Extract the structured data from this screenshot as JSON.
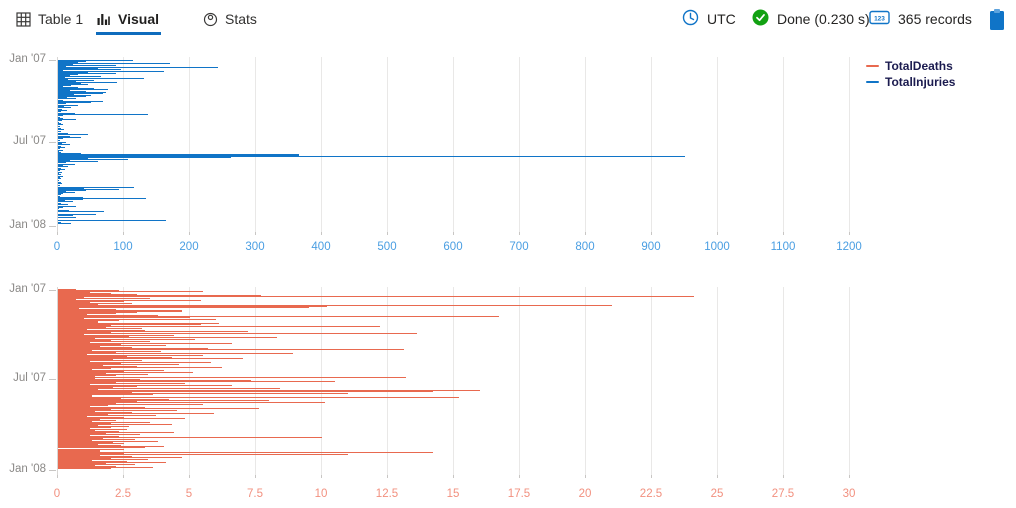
{
  "toolbar": {
    "tabs": [
      {
        "label": "Table 1",
        "icon": "table-grid-icon",
        "active": false
      },
      {
        "label": "Visual",
        "icon": "bar-chart-icon",
        "active": true
      },
      {
        "label": "Stats",
        "icon": "donut-icon",
        "active": false
      }
    ],
    "status": {
      "timezone": "UTC",
      "timezone_icon": "clock-icon",
      "done": "Done (0.230 s)",
      "done_icon": "check-circle-icon",
      "records": "365 records",
      "records_icon": "number-badge-icon",
      "clipboard_icon": "clipboard-icon"
    }
  },
  "legend": {
    "items": [
      {
        "label": "TotalDeaths",
        "color": "#e8694f"
      },
      {
        "label": "TotalInjuries",
        "color": "#1074c7"
      }
    ]
  },
  "colors": {
    "accent_blue": "#0f6cbd",
    "status_green": "#12a112",
    "bar_blue": "#1074c7",
    "bar_red": "#e8694f",
    "tick_blue": "#4a9ee2",
    "tick_red": "#f2907f",
    "grid": "#e9e8e7",
    "y_label_gray": "#8a8886"
  },
  "chart_data": [
    {
      "type": "bar",
      "orientation": "horizontal",
      "series": "TotalInjuries",
      "color": "#1074c7",
      "xlim": [
        0,
        1200
      ],
      "x_ticks": [
        0,
        100,
        200,
        300,
        400,
        500,
        600,
        700,
        800,
        900,
        1000,
        1100,
        1200
      ],
      "y_axis": "date (daily, 2007)",
      "grid": true,
      "legend_position": "top-right",
      "y_tick_labels": [
        {
          "label": "Jan '07",
          "day": 0
        },
        {
          "label": "Jul '07",
          "day": 181
        },
        {
          "label": "Jan '08",
          "day": 365
        }
      ],
      "bars": [
        [
          0,
          25
        ],
        [
          1,
          113
        ],
        [
          3,
          42
        ],
        [
          4,
          30
        ],
        [
          5,
          8
        ],
        [
          6,
          170
        ],
        [
          8,
          22
        ],
        [
          9,
          6
        ],
        [
          11,
          88
        ],
        [
          12,
          45
        ],
        [
          14,
          12
        ],
        [
          15,
          242
        ],
        [
          17,
          60
        ],
        [
          18,
          14
        ],
        [
          20,
          95
        ],
        [
          21,
          28
        ],
        [
          23,
          7
        ],
        [
          24,
          160
        ],
        [
          26,
          45
        ],
        [
          27,
          12
        ],
        [
          29,
          88
        ],
        [
          31,
          30
        ],
        [
          33,
          18
        ],
        [
          35,
          65
        ],
        [
          36,
          25
        ],
        [
          38,
          10
        ],
        [
          39,
          130
        ],
        [
          41,
          40
        ],
        [
          43,
          15
        ],
        [
          45,
          55
        ],
        [
          47,
          28
        ],
        [
          48,
          90
        ],
        [
          50,
          35
        ],
        [
          52,
          12
        ],
        [
          54,
          45
        ],
        [
          56,
          20
        ],
        [
          58,
          8
        ],
        [
          60,
          30
        ],
        [
          62,
          55
        ],
        [
          63,
          12
        ],
        [
          65,
          75
        ],
        [
          67,
          18
        ],
        [
          69,
          42
        ],
        [
          71,
          73
        ],
        [
          73,
          68
        ],
        [
          75,
          24
        ],
        [
          77,
          50
        ],
        [
          80,
          42
        ],
        [
          82,
          14
        ],
        [
          85,
          28
        ],
        [
          88,
          8
        ],
        [
          90,
          68
        ],
        [
          92,
          24
        ],
        [
          94,
          50
        ],
        [
          96,
          12
        ],
        [
          99,
          30
        ],
        [
          102,
          9
        ],
        [
          105,
          20
        ],
        [
          108,
          6
        ],
        [
          111,
          14
        ],
        [
          114,
          5
        ],
        [
          117,
          25
        ],
        [
          120,
          136
        ],
        [
          123,
          8
        ],
        [
          126,
          3
        ],
        [
          128,
          8
        ],
        [
          131,
          28
        ],
        [
          134,
          6
        ],
        [
          137,
          2
        ],
        [
          140,
          4
        ],
        [
          143,
          7
        ],
        [
          146,
          3
        ],
        [
          150,
          5
        ],
        [
          154,
          9
        ],
        [
          158,
          4
        ],
        [
          162,
          15
        ],
        [
          165,
          45
        ],
        [
          168,
          18
        ],
        [
          171,
          35
        ],
        [
          174,
          8
        ],
        [
          178,
          3
        ],
        [
          181,
          12
        ],
        [
          184,
          6
        ],
        [
          187,
          18
        ],
        [
          190,
          4
        ],
        [
          193,
          10
        ],
        [
          196,
          3
        ],
        [
          199,
          8
        ],
        [
          202,
          2
        ],
        [
          205,
          5
        ],
        [
          207,
          35
        ],
        [
          209,
          60
        ],
        [
          210,
          365,
          2
        ],
        [
          212,
          950
        ],
        [
          214,
          80
        ],
        [
          216,
          262
        ],
        [
          217,
          45
        ],
        [
          219,
          106
        ],
        [
          221,
          18
        ],
        [
          223,
          8
        ],
        [
          225,
          61
        ],
        [
          227,
          12
        ],
        [
          230,
          25
        ],
        [
          233,
          8
        ],
        [
          236,
          15
        ],
        [
          239,
          5
        ],
        [
          242,
          10
        ],
        [
          245,
          3
        ],
        [
          248,
          6
        ],
        [
          251,
          2
        ],
        [
          254,
          4
        ],
        [
          257,
          7
        ],
        [
          260,
          3
        ],
        [
          263,
          5
        ],
        [
          266,
          2
        ],
        [
          270,
          4
        ],
        [
          274,
          6
        ],
        [
          278,
          3
        ],
        [
          281,
          115
        ],
        [
          283,
          40
        ],
        [
          285,
          20
        ],
        [
          287,
          92
        ],
        [
          289,
          42
        ],
        [
          291,
          12
        ],
        [
          293,
          25
        ],
        [
          295,
          8
        ],
        [
          298,
          5
        ],
        [
          301,
          3
        ],
        [
          304,
          38
        ],
        [
          306,
          133
        ],
        [
          308,
          38
        ],
        [
          311,
          10
        ],
        [
          314,
          22
        ],
        [
          317,
          5
        ],
        [
          320,
          15
        ],
        [
          323,
          28
        ],
        [
          326,
          8
        ],
        [
          329,
          2
        ],
        [
          332,
          6
        ],
        [
          334,
          17
        ],
        [
          336,
          70
        ],
        [
          341,
          58
        ],
        [
          345,
          23
        ],
        [
          349,
          27
        ],
        [
          356,
          164
        ],
        [
          359,
          5
        ],
        [
          362,
          20
        ]
      ]
    },
    {
      "type": "bar",
      "orientation": "horizontal",
      "series": "TotalDeaths",
      "color": "#e8694f",
      "xlim": [
        0,
        30
      ],
      "x_ticks": [
        0,
        2.5,
        5,
        7.5,
        10,
        12.5,
        15,
        17.5,
        20,
        22.5,
        25,
        27.5,
        30
      ],
      "y_axis": "date (daily, 2007)",
      "grid": true,
      "legend_position": "top-right",
      "y_tick_labels": [
        {
          "label": "Jan '07",
          "day": 0
        },
        {
          "label": "Jul '07",
          "day": 181
        },
        {
          "label": "Jan '08",
          "day": 365
        }
      ],
      "bars": [
        [
          0,
          0.7,
          3
        ],
        [
          1,
          2.3
        ],
        [
          2,
          5.5
        ],
        [
          4,
          1.2
        ],
        [
          6,
          2.0
        ],
        [
          8,
          0.8,
          4
        ],
        [
          9,
          3.0
        ],
        [
          10,
          7.7
        ],
        [
          12,
          24.1
        ],
        [
          13,
          2.0
        ],
        [
          15,
          1.0,
          3
        ],
        [
          17,
          3.5
        ],
        [
          18,
          0.7,
          3
        ],
        [
          20,
          5.4
        ],
        [
          22,
          2.5
        ],
        [
          24,
          1.2,
          2
        ],
        [
          26,
          2.8
        ],
        [
          28,
          1.5
        ],
        [
          30,
          21.0
        ],
        [
          31,
          16.7
        ],
        [
          33,
          10.2
        ],
        [
          35,
          9.5
        ],
        [
          36,
          0.8,
          3
        ],
        [
          38,
          2.2
        ],
        [
          40,
          4.0
        ],
        [
          42,
          4.7,
          2
        ],
        [
          44,
          1.5,
          3
        ],
        [
          46,
          3.0
        ],
        [
          48,
          2.2
        ],
        [
          50,
          1.1,
          2
        ],
        [
          52,
          3.8
        ],
        [
          54,
          16.7
        ],
        [
          56,
          5.0
        ],
        [
          58,
          1.0,
          3
        ],
        [
          60,
          6.0
        ],
        [
          62,
          2.3
        ],
        [
          64,
          1.4,
          2
        ],
        [
          66,
          1.5,
          4
        ],
        [
          68,
          6.1
        ],
        [
          70,
          5.4
        ],
        [
          72,
          2.0
        ],
        [
          74,
          12.2
        ],
        [
          76,
          1.8
        ],
        [
          78,
          3.2
        ],
        [
          80,
          1.1,
          4
        ],
        [
          82,
          3.3
        ],
        [
          84,
          7.2
        ],
        [
          86,
          2.0
        ],
        [
          88,
          13.6
        ],
        [
          90,
          1.0,
          3
        ],
        [
          92,
          4.4
        ],
        [
          94,
          2.7
        ],
        [
          96,
          8.3
        ],
        [
          98,
          1.4,
          3
        ],
        [
          100,
          5.2
        ],
        [
          102,
          2.0
        ],
        [
          104,
          3.5
        ],
        [
          106,
          1.2,
          3
        ],
        [
          108,
          6.6
        ],
        [
          110,
          2.4
        ],
        [
          112,
          4.1
        ],
        [
          114,
          1.6,
          3
        ],
        [
          116,
          2.8
        ],
        [
          118,
          5.7
        ],
        [
          120,
          13.1
        ],
        [
          122,
          1.3,
          4
        ],
        [
          124,
          3.9
        ],
        [
          126,
          2.2
        ],
        [
          128,
          8.9
        ],
        [
          130,
          1.1,
          3
        ],
        [
          132,
          5.5
        ],
        [
          134,
          2.6
        ],
        [
          136,
          4.3
        ],
        [
          138,
          1.5,
          4
        ],
        [
          140,
          7.0
        ],
        [
          142,
          2.1
        ],
        [
          144,
          3.2
        ],
        [
          146,
          1.2,
          3
        ],
        [
          148,
          5.8
        ],
        [
          150,
          2.4
        ],
        [
          152,
          4.6
        ],
        [
          154,
          1.7,
          3
        ],
        [
          156,
          3.0
        ],
        [
          158,
          6.2
        ],
        [
          160,
          2.0
        ],
        [
          162,
          1.3,
          3
        ],
        [
          164,
          4.0
        ],
        [
          166,
          2.5
        ],
        [
          168,
          5.1
        ],
        [
          170,
          1.8,
          3
        ],
        [
          172,
          3.4
        ],
        [
          174,
          2.2
        ],
        [
          176,
          1.4,
          2
        ],
        [
          178,
          13.2
        ],
        [
          180,
          1.4,
          4
        ],
        [
          182,
          3.1
        ],
        [
          184,
          7.3
        ],
        [
          186,
          10.5
        ],
        [
          188,
          2.2
        ],
        [
          190,
          4.8
        ],
        [
          192,
          1.2,
          4
        ],
        [
          194,
          6.6
        ],
        [
          196,
          3.0
        ],
        [
          198,
          2.1
        ],
        [
          200,
          8.4
        ],
        [
          202,
          1.5,
          3
        ],
        [
          205,
          16.0
        ],
        [
          207,
          14.2
        ],
        [
          209,
          2.8
        ],
        [
          211,
          11.0
        ],
        [
          213,
          3.6
        ],
        [
          215,
          1.3,
          3
        ],
        [
          218,
          15.2
        ],
        [
          220,
          2.4
        ],
        [
          222,
          4.2
        ],
        [
          224,
          8.0
        ],
        [
          226,
          1.6,
          3
        ],
        [
          228,
          3.0
        ],
        [
          230,
          10.1
        ],
        [
          232,
          2.2
        ],
        [
          234,
          5.5
        ],
        [
          236,
          1.9
        ],
        [
          238,
          1.2,
          4
        ],
        [
          240,
          3.3
        ],
        [
          242,
          7.6
        ],
        [
          244,
          2.0
        ],
        [
          246,
          4.5
        ],
        [
          248,
          1.4,
          3
        ],
        [
          250,
          2.8
        ],
        [
          252,
          5.9
        ],
        [
          254,
          1.9
        ],
        [
          256,
          3.7
        ],
        [
          258,
          1.1,
          3
        ],
        [
          260,
          2.5
        ],
        [
          262,
          4.8
        ],
        [
          264,
          1.6
        ],
        [
          266,
          2.2
        ],
        [
          268,
          1.3,
          3
        ],
        [
          270,
          3.5
        ],
        [
          272,
          2.0
        ],
        [
          274,
          4.3
        ],
        [
          276,
          1.5,
          3
        ],
        [
          278,
          2.7
        ],
        [
          280,
          2.0
        ],
        [
          282,
          1.2,
          2
        ],
        [
          284,
          2.6
        ],
        [
          286,
          1.4,
          3
        ],
        [
          288,
          2.3
        ],
        [
          290,
          4.4
        ],
        [
          292,
          1.8
        ],
        [
          294,
          3.1
        ],
        [
          296,
          1.2,
          3
        ],
        [
          298,
          2.3
        ],
        [
          300,
          10.0
        ],
        [
          302,
          1.7
        ],
        [
          304,
          2.9
        ],
        [
          306,
          1.3,
          3
        ],
        [
          308,
          3.8
        ],
        [
          310,
          2.1
        ],
        [
          312,
          2.5
        ],
        [
          314,
          1.5,
          4
        ],
        [
          316,
          2.4
        ],
        [
          318,
          4.0
        ],
        [
          320,
          1.9
        ],
        [
          322,
          3.3
        ],
        [
          326,
          2.5
        ],
        [
          328,
          1.6,
          2
        ],
        [
          331,
          14.2
        ],
        [
          333,
          2.5
        ],
        [
          335,
          11.0
        ],
        [
          337,
          1.6,
          4
        ],
        [
          339,
          2.8
        ],
        [
          341,
          4.7
        ],
        [
          343,
          2.0
        ],
        [
          345,
          3.4
        ],
        [
          347,
          1.3,
          3
        ],
        [
          349,
          2.6
        ],
        [
          351,
          4.1
        ],
        [
          353,
          1.8
        ],
        [
          355,
          2.9
        ],
        [
          357,
          1.4,
          4
        ],
        [
          359,
          2.2
        ],
        [
          361,
          3.6
        ],
        [
          363,
          2.0
        ]
      ]
    }
  ]
}
